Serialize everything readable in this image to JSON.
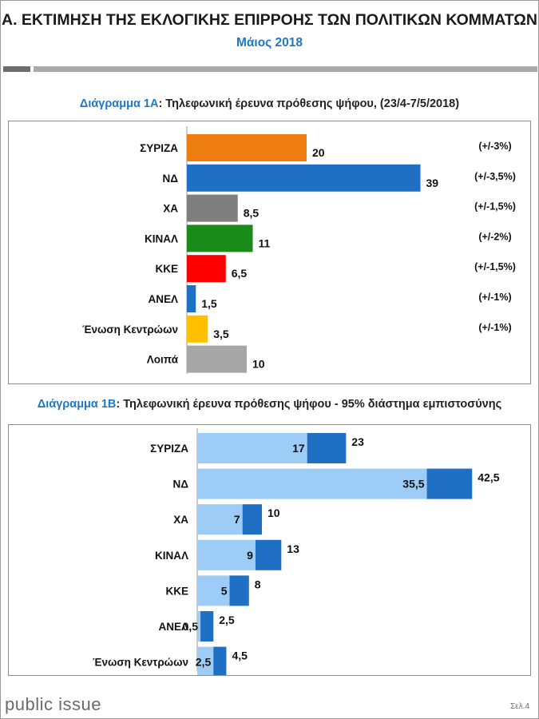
{
  "header": {
    "title": "Α. ΕΚΤΙΜΗΣΗ ΤΗΣ ΕΚΛΟΓΙΚΗΣ ΕΠΙΡΡΟΗΣ ΤΩΝ ΠΟΛΙΤΙΚΩΝ ΚΟΜΜΑΤΩΝ",
    "subtitle": "Μάιος 2018"
  },
  "chart_a_heading": {
    "label": "Διάγραμμα 1Α",
    "text": ": Τηλεφωνική έρευνα πρόθεσης ψήφου,  (23/4-7/5/2018)"
  },
  "chart_b_heading": {
    "label": "Διάγραμμα 1Β",
    "text": ": Τηλεφωνική έρευνα πρόθεσης ψήφου - 95% διάστημα εμπιστοσύνης"
  },
  "footer": {
    "logo": "public issue",
    "page": "Σελ.4"
  },
  "chart_data": [
    {
      "type": "bar",
      "orientation": "horizontal",
      "categories": [
        "ΣΥΡΙΖΑ",
        "ΝΔ",
        "ΧΑ",
        "ΚΙΝΑΛ",
        "ΚΚΕ",
        "ΑΝΕΛ",
        "Ένωση Κεντρώων",
        "Λοιπά"
      ],
      "values": [
        20,
        39,
        8.5,
        11,
        6.5,
        1.5,
        3.5,
        10
      ],
      "value_labels": [
        "20",
        "39",
        "8,5",
        "11",
        "6,5",
        "1,5",
        "3,5",
        "10"
      ],
      "margins": [
        "(+/-3%)",
        "(+/-3,5%)",
        "(+/-1,5%)",
        "(+/-2%)",
        "(+/-1,5%)",
        "(+/-1%)",
        "(+/-1%)",
        ""
      ],
      "colors": [
        "#ee7e12",
        "#1f6fc5",
        "#7f7f7f",
        "#1a8a18",
        "#ff0000",
        "#1f6fc5",
        "#ffc000",
        "#a6a6a6"
      ],
      "xlim": [
        0,
        42.5
      ],
      "grid": false
    },
    {
      "type": "bar",
      "orientation": "horizontal",
      "stacked": true,
      "categories": [
        "ΣΥΡΙΖΑ",
        "ΝΔ",
        "ΧΑ",
        "ΚΙΝΑΛ",
        "ΚΚΕ",
        "ΑΝΕΛ",
        "Ένωση Κεντρώων"
      ],
      "lower": [
        17,
        35.5,
        7,
        9,
        5,
        0.5,
        2.5
      ],
      "upper": [
        23,
        42.5,
        10,
        13,
        8,
        2.5,
        4.5
      ],
      "lower_labels": [
        "17",
        "35,5",
        "7",
        "9",
        "5",
        "0,5",
        "2,5"
      ],
      "upper_labels": [
        "23",
        "42,5",
        "10",
        "13",
        "8",
        "2,5",
        "4,5"
      ],
      "colors": {
        "lower": "#9dcdf6",
        "upper": "#1f6fc5"
      },
      "xlim": [
        0,
        42.5
      ],
      "grid": false
    }
  ]
}
